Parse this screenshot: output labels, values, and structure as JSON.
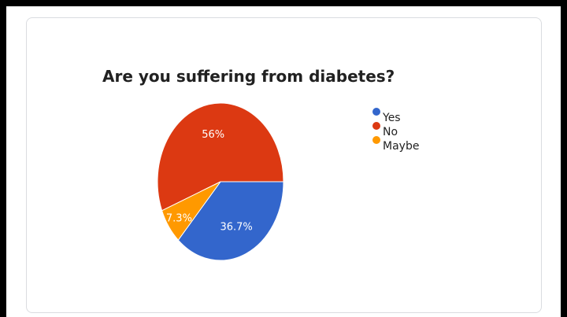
{
  "chart_data": {
    "type": "pie",
    "title": "Are you suffering from diabetes?",
    "categories": [
      "Yes",
      "No",
      "Maybe"
    ],
    "values": [
      36.7,
      56,
      7.3
    ],
    "value_labels": [
      "36.7%",
      "56%",
      "7.3%"
    ],
    "colors": [
      "#3366cc",
      "#dc3912",
      "#ff9900"
    ],
    "legend_position": "right"
  }
}
